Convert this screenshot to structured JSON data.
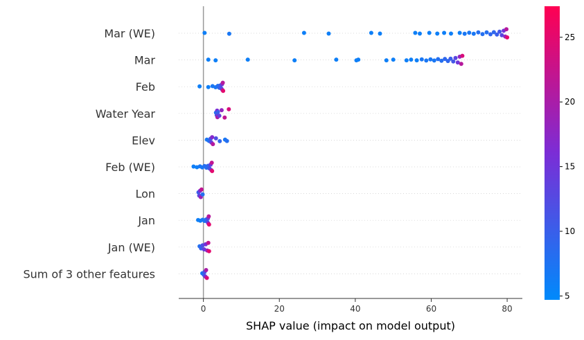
{
  "chart_data": {
    "type": "scatter",
    "subtype": "shap-beeswarm",
    "title": "",
    "xlabel": "SHAP value (impact on model output)",
    "ylabel": "",
    "xlim": [
      -6.5,
      84
    ],
    "xticks": [
      0,
      20,
      40,
      60,
      80
    ],
    "grid": false,
    "colorbar": {
      "range": [
        4.7,
        27.4
      ],
      "ticks": [
        5,
        10,
        15,
        20,
        25
      ],
      "low_color": "#008afb",
      "mid_color": "#7b2dd6",
      "high_color": "#ff0052"
    },
    "features": [
      {
        "name": "Mar (WE)",
        "points": [
          {
            "x": 0.3,
            "v": 6
          },
          {
            "x": 6.8,
            "v": 7
          },
          {
            "x": 26.5,
            "v": 6
          },
          {
            "x": 33,
            "v": 6
          },
          {
            "x": 44.2,
            "v": 6
          },
          {
            "x": 46.5,
            "v": 6
          },
          {
            "x": 55.8,
            "v": 6
          },
          {
            "x": 57,
            "v": 6
          },
          {
            "x": 59.5,
            "v": 6
          },
          {
            "x": 61.6,
            "v": 6
          },
          {
            "x": 63.4,
            "v": 6
          },
          {
            "x": 65.2,
            "v": 6
          },
          {
            "x": 67.5,
            "v": 6
          },
          {
            "x": 68.8,
            "v": 7
          },
          {
            "x": 70,
            "v": 7
          },
          {
            "x": 71.2,
            "v": 7
          },
          {
            "x": 72.4,
            "v": 8
          },
          {
            "x": 73.5,
            "v": 8
          },
          {
            "x": 74.6,
            "v": 8
          },
          {
            "x": 75.6,
            "v": 9
          },
          {
            "x": 76.5,
            "v": 9
          },
          {
            "x": 77.3,
            "v": 10
          },
          {
            "x": 78,
            "v": 11
          },
          {
            "x": 78.6,
            "v": 13
          },
          {
            "x": 79.1,
            "v": 15
          },
          {
            "x": 79.5,
            "v": 18
          },
          {
            "x": 79.8,
            "v": 21
          },
          {
            "x": 80,
            "v": 25
          }
        ]
      },
      {
        "name": "Mar",
        "points": [
          {
            "x": 1.3,
            "v": 6
          },
          {
            "x": 3.2,
            "v": 6
          },
          {
            "x": 11.7,
            "v": 6
          },
          {
            "x": 24,
            "v": 6
          },
          {
            "x": 35,
            "v": 6
          },
          {
            "x": 40.3,
            "v": 6
          },
          {
            "x": 40.8,
            "v": 6
          },
          {
            "x": 48.2,
            "v": 6
          },
          {
            "x": 50,
            "v": 6
          },
          {
            "x": 53.5,
            "v": 6
          },
          {
            "x": 54.7,
            "v": 6
          },
          {
            "x": 56.2,
            "v": 6
          },
          {
            "x": 57.5,
            "v": 7
          },
          {
            "x": 58.7,
            "v": 7
          },
          {
            "x": 59.8,
            "v": 7
          },
          {
            "x": 60.8,
            "v": 7
          },
          {
            "x": 61.8,
            "v": 8
          },
          {
            "x": 62.7,
            "v": 8
          },
          {
            "x": 63.6,
            "v": 9
          },
          {
            "x": 64.4,
            "v": 9
          },
          {
            "x": 65.1,
            "v": 10
          },
          {
            "x": 65.8,
            "v": 11
          },
          {
            "x": 66.4,
            "v": 13
          },
          {
            "x": 67,
            "v": 15
          },
          {
            "x": 67.5,
            "v": 18
          },
          {
            "x": 67.9,
            "v": 21
          },
          {
            "x": 68.2,
            "v": 24
          }
        ]
      },
      {
        "name": "Feb",
        "points": [
          {
            "x": -1,
            "v": 6
          },
          {
            "x": 1.3,
            "v": 6
          },
          {
            "x": 2.4,
            "v": 7
          },
          {
            "x": 3.2,
            "v": 7
          },
          {
            "x": 3.8,
            "v": 8
          },
          {
            "x": 4.2,
            "v": 9
          },
          {
            "x": 4.5,
            "v": 10
          },
          {
            "x": 4.7,
            "v": 12
          },
          {
            "x": 4.9,
            "v": 15
          },
          {
            "x": 5,
            "v": 18
          },
          {
            "x": 5.1,
            "v": 21
          },
          {
            "x": 5.2,
            "v": 25
          }
        ]
      },
      {
        "name": "Water Year",
        "points": [
          {
            "x": 3.3,
            "v": 8
          },
          {
            "x": 3.5,
            "v": 12
          },
          {
            "x": 3.6,
            "v": 16
          },
          {
            "x": 3.7,
            "v": 20
          },
          {
            "x": 3.8,
            "v": 10
          },
          {
            "x": 4.2,
            "v": 14
          },
          {
            "x": 4.8,
            "v": 18
          },
          {
            "x": 5.6,
            "v": 22
          },
          {
            "x": 6.7,
            "v": 24
          }
        ]
      },
      {
        "name": "Elev",
        "points": [
          {
            "x": 0.9,
            "v": 7
          },
          {
            "x": 1.5,
            "v": 8
          },
          {
            "x": 1.9,
            "v": 11
          },
          {
            "x": 2.1,
            "v": 14
          },
          {
            "x": 2.3,
            "v": 17
          },
          {
            "x": 2.5,
            "v": 21
          },
          {
            "x": 3.3,
            "v": 12
          },
          {
            "x": 4.3,
            "v": 9
          },
          {
            "x": 5.7,
            "v": 7
          },
          {
            "x": 6.2,
            "v": 8
          }
        ]
      },
      {
        "name": "Feb (WE)",
        "points": [
          {
            "x": -2.6,
            "v": 6
          },
          {
            "x": -1.7,
            "v": 6
          },
          {
            "x": -0.9,
            "v": 7
          },
          {
            "x": -0.3,
            "v": 7
          },
          {
            "x": 0.3,
            "v": 8
          },
          {
            "x": 0.8,
            "v": 8
          },
          {
            "x": 1.2,
            "v": 9
          },
          {
            "x": 1.6,
            "v": 11
          },
          {
            "x": 1.9,
            "v": 14
          },
          {
            "x": 2.1,
            "v": 18
          },
          {
            "x": 2.2,
            "v": 22
          },
          {
            "x": 2.3,
            "v": 25
          }
        ]
      },
      {
        "name": "Lon",
        "points": [
          {
            "x": -1.3,
            "v": 10
          },
          {
            "x": -1.1,
            "v": 13
          },
          {
            "x": -0.9,
            "v": 16
          },
          {
            "x": -0.7,
            "v": 19
          },
          {
            "x": -0.5,
            "v": 22
          },
          {
            "x": -0.2,
            "v": 8
          }
        ]
      },
      {
        "name": "Jan",
        "points": [
          {
            "x": -1.4,
            "v": 6
          },
          {
            "x": -0.8,
            "v": 6
          },
          {
            "x": -0.2,
            "v": 7
          },
          {
            "x": 0.3,
            "v": 7
          },
          {
            "x": 0.7,
            "v": 8
          },
          {
            "x": 1,
            "v": 10
          },
          {
            "x": 1.2,
            "v": 13
          },
          {
            "x": 1.3,
            "v": 17
          },
          {
            "x": 1.4,
            "v": 21
          },
          {
            "x": 1.5,
            "v": 25
          }
        ]
      },
      {
        "name": "Jan (WE)",
        "points": [
          {
            "x": -1,
            "v": 8
          },
          {
            "x": -0.6,
            "v": 10
          },
          {
            "x": -0.2,
            "v": 12
          },
          {
            "x": 0.2,
            "v": 14
          },
          {
            "x": 0.6,
            "v": 16
          },
          {
            "x": 1,
            "v": 19
          },
          {
            "x": 1.3,
            "v": 22
          },
          {
            "x": 1.5,
            "v": 25
          }
        ]
      },
      {
        "name": "Sum of 3 other features",
        "points": [
          {
            "x": -0.3,
            "v": 7
          },
          {
            "x": 0.1,
            "v": 9
          },
          {
            "x": 0.3,
            "v": 12
          },
          {
            "x": 0.5,
            "v": 16
          },
          {
            "x": 0.7,
            "v": 20
          },
          {
            "x": 0.9,
            "v": 24
          }
        ]
      }
    ]
  }
}
